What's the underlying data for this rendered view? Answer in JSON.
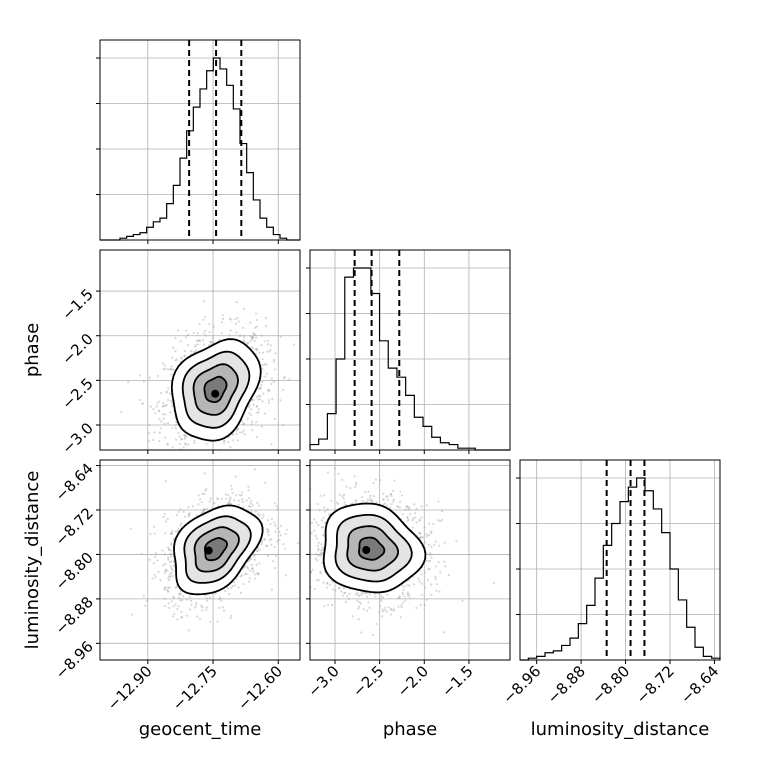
{
  "chart_data": {
    "type": "corner",
    "parameters": [
      "geocent_time",
      "phase",
      "luminosity_distance"
    ],
    "axis_labels": {
      "geocent_time": "geocent_time",
      "phase": "phase",
      "luminosity_distance": "luminosity_distance"
    },
    "ranges": {
      "geocent_time": [
        -13.01,
        -12.55
      ],
      "phase": [
        -3.28,
        -1.04
      ],
      "luminosity_distance": [
        -8.99,
        -8.63
      ]
    },
    "ticks": {
      "geocent_time": [
        "−12.90",
        "−12.75",
        "−12.60"
      ],
      "phase": [
        "−3.0",
        "−2.5",
        "−2.0",
        "−1.5"
      ],
      "luminosity_distance": [
        "−8.96",
        "−8.88",
        "−8.80",
        "−8.72",
        "−8.64"
      ]
    },
    "quantiles": {
      "geocent_time": [
        -12.805,
        -12.743,
        -12.685
      ],
      "phase": [
        -2.78,
        -2.59,
        -2.28
      ],
      "luminosity_distance": [
        -8.834,
        -8.791,
        -8.766
      ]
    },
    "histograms": {
      "geocent_time": {
        "range": [
          -13.01,
          -12.55
        ],
        "counts": [
          0,
          0,
          0,
          0.01,
          0.02,
          0.03,
          0.04,
          0.07,
          0.1,
          0.12,
          0.2,
          0.3,
          0.45,
          0.6,
          0.73,
          0.83,
          0.93,
          1.0,
          0.94,
          0.85,
          0.72,
          0.53,
          0.37,
          0.22,
          0.12,
          0.07,
          0.03,
          0.01,
          0,
          0
        ]
      },
      "phase": {
        "range": [
          -3.28,
          -1.04
        ],
        "counts": [
          0.03,
          0.06,
          0.2,
          0.5,
          0.95,
          1.0,
          1.0,
          0.86,
          0.6,
          0.45,
          0.4,
          0.3,
          0.18,
          0.13,
          0.07,
          0.04,
          0.03,
          0.01,
          0.01,
          0,
          0,
          0,
          0
        ]
      },
      "luminosity_distance": {
        "range": [
          -8.99,
          -8.63
        ],
        "counts": [
          0,
          0.01,
          0.02,
          0.04,
          0.05,
          0.08,
          0.12,
          0.2,
          0.3,
          0.45,
          0.63,
          0.75,
          0.87,
          0.95,
          1.0,
          0.93,
          0.83,
          0.7,
          0.5,
          0.33,
          0.18,
          0.07,
          0.02,
          0.01
        ]
      }
    },
    "joint": [
      {
        "x": "geocent_time",
        "y": "phase",
        "mean": [
          -12.745,
          -2.6
        ],
        "sd": [
          0.05,
          0.28
        ],
        "corr": 0.25,
        "tilt_peak": [
          -12.745,
          -2.65
        ]
      },
      {
        "x": "geocent_time",
        "y": "luminosity_distance",
        "mean": [
          -12.745,
          -8.79
        ],
        "sd": [
          0.05,
          0.04
        ],
        "corr": 0.35,
        "tilt_peak": [
          -12.76,
          -8.793
        ]
      },
      {
        "x": "phase",
        "y": "luminosity_distance",
        "mean": [
          -2.6,
          -8.79
        ],
        "sd": [
          0.28,
          0.04
        ],
        "corr": -0.1,
        "tilt_peak": [
          -2.65,
          -8.792
        ]
      }
    ],
    "contour_levels": [
      0.5,
      1.0,
      1.5,
      2.0
    ],
    "grid": true,
    "line_color": "#000000",
    "scatter_color": "#a6a6a6"
  }
}
